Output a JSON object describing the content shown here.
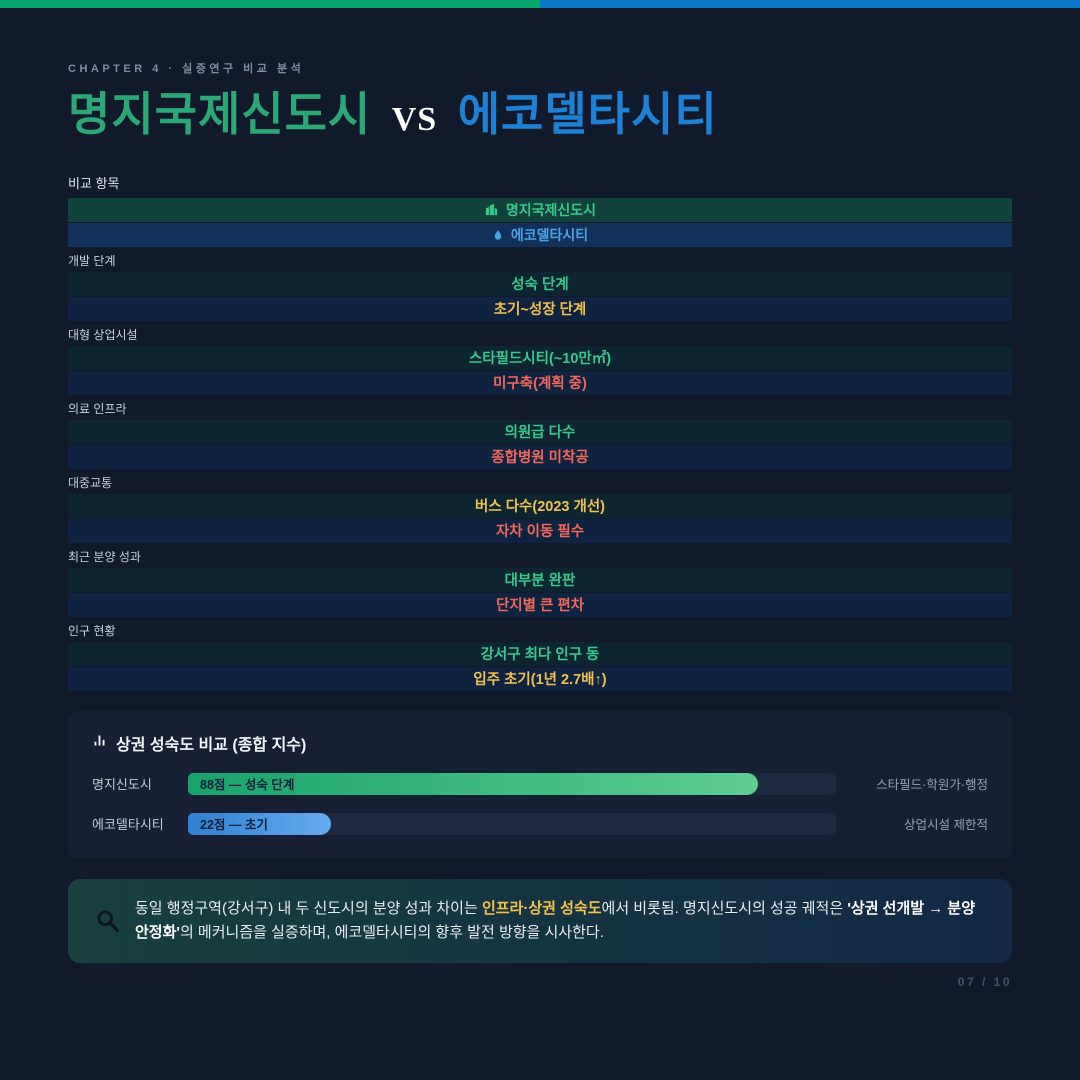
{
  "meta": {
    "page_bg": "#101a2b",
    "accent_green": "#35c98c",
    "accent_blue": "#4aa3e6"
  },
  "top_bar": {
    "left_color": "#0ba56e",
    "right_color": "#0b79c8"
  },
  "header": {
    "chapter": "CHAPTER 4 · 실증연구 비교 분석",
    "title_primary": "명지국제신도시",
    "title_vs": "VS",
    "title_secondary": "에코델타시티",
    "title_primary_color": "#2aa877",
    "title_secondary_color": "#1e82d4"
  },
  "table": {
    "corner_label": "비교 항목",
    "column_a": {
      "label": "명지국제신도시",
      "icon": "city-icon",
      "text_color": "#35c98c",
      "bg_color": "#11413b"
    },
    "column_b": {
      "label": "에코델타시티",
      "icon": "droplet-icon",
      "text_color": "#4aa3e6",
      "bg_color": "#123158"
    },
    "tone_colors": {
      "green": "#35c98c",
      "yellow": "#f0c14f",
      "red": "#f0685c"
    },
    "rows": [
      {
        "label": "개발 단계",
        "a": {
          "text": "성숙 단계",
          "tone": "green"
        },
        "b": {
          "text": "초기~성장 단계",
          "tone": "yellow"
        }
      },
      {
        "label": "대형 상업시설",
        "a": {
          "text": "스타필드시티(~10만㎡)",
          "tone": "green"
        },
        "b": {
          "text": "미구축(계획 중)",
          "tone": "red"
        }
      },
      {
        "label": "의료 인프라",
        "a": {
          "text": "의원급 다수",
          "tone": "green"
        },
        "b": {
          "text": "종합병원 미착공",
          "tone": "red"
        }
      },
      {
        "label": "대중교통",
        "a": {
          "text": "버스 다수(2023 개선)",
          "tone": "yellow"
        },
        "b": {
          "text": "자차 이동 필수",
          "tone": "red"
        }
      },
      {
        "label": "최근 분양 성과",
        "a": {
          "text": "대부분 완판",
          "tone": "green"
        },
        "b": {
          "text": "단지별 큰 편차",
          "tone": "red"
        }
      },
      {
        "label": "인구 현황",
        "a": {
          "text": "강서구 최다 인구 동",
          "tone": "green"
        },
        "b": {
          "text": "입주 초기(1년 2.7배↑)",
          "tone": "yellow"
        }
      }
    ]
  },
  "chart_data": {
    "type": "bar",
    "orientation": "horizontal",
    "title": "상권 성숙도 비교 (종합 지수)",
    "title_icon": "bar-chart-icon",
    "categories": [
      "명지신도시",
      "에코델타시티"
    ],
    "values": [
      88,
      22
    ],
    "bar_labels": [
      "88점 — 성숙 단계",
      "22점 — 초기"
    ],
    "annotations": [
      "스타필드·학원가·행정",
      "상업시설 제한적"
    ],
    "xlim": [
      0,
      100
    ],
    "grid": false,
    "bar_gradients": [
      [
        "#18a36c",
        "#5ecd8f"
      ],
      [
        "#2f80d2",
        "#66abee"
      ]
    ]
  },
  "summary": {
    "icon": "magnifier-icon",
    "segments": [
      {
        "text": "동일 행정구역(강서구) 내 두 신도시의 분양 성과 차이는 ",
        "style": "normal"
      },
      {
        "text": "인프라·상권 성숙도",
        "style": "bold-yellow"
      },
      {
        "text": "에서 비롯됨. 명지신도시의 성공 궤적은 ",
        "style": "normal"
      },
      {
        "text": "'상권 선개발 → 분양 안정화'",
        "style": "bold"
      },
      {
        "text": "의 메커니즘을 실증하며, 에코델타시티의 향후 발전 방향을 시사한다.",
        "style": "normal"
      }
    ]
  },
  "footer": {
    "page_indicator": "07 / 10"
  }
}
